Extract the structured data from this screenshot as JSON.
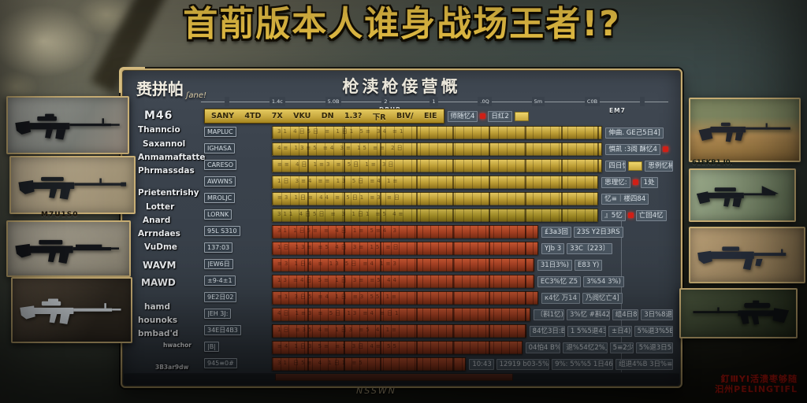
{
  "title": "首萷版本人谁身战场王者!?",
  "panel": {
    "header": "枪渎枪倿营慨",
    "corner_label": "赉拼帕",
    "corner_script": "ʃane!",
    "ruler_ticks": [
      "",
      "1.4c",
      "5.0B",
      "2",
      "1",
      ".0Q",
      "5m",
      "C0B",
      ""
    ],
    "sub_label_left": "DRUB",
    "sub_label_right": "EM7",
    "footer": "NSSWN"
  },
  "left_labels": [
    "M46",
    "Thanncio",
    "Saxannol",
    "Anmamaftatte",
    "Phrmassdas",
    "Prietentrishy",
    "Lotter",
    "Anard",
    "Arrndaes",
    "VuDme",
    "WAVM",
    "MAWD",
    "hamd",
    "hounoks",
    "bmbad'd",
    "hwachor",
    "3B3ar9dw"
  ],
  "table": {
    "header_cells": [
      "SANY",
      "4TD",
      "7X",
      "VKU",
      "DN",
      "1.3?",
      "下R",
      "BIV/",
      "EIE"
    ],
    "header_value": "师随忆4",
    "header_value2": "日红2",
    "rows": [
      {
        "tag": "MAPLUC",
        "color": "yellow",
        "len": 82,
        "bt": "31 4日5日 ≡ 1日1 5≡ 34 ≡1",
        "v1": "伸曲. GE己5日4]"
      },
      {
        "tag": "IGHASA",
        "color": "yellow",
        "len": 82,
        "bt": "4≡ 13≡5 ≡4 3≡ 15 ≡≡ 2日",
        "v1": "惧凯 :3阅 酥忆4"
      },
      {
        "tag": "CARESO",
        "color": "yellow",
        "len": 82,
        "bt": "≡≡ 4日 1≡3 ≡ 5日 1≡ 3日",
        "v1": "四日忆",
        "v2": "思例忆椒»"
      },
      {
        "tag": "AWWNS",
        "color": "yellow",
        "len": 81,
        "bt": "1日 3≡4 ≡≡ 13 5日 ≡4 1≡",
        "v1": "思理忆:",
        "v2": "1处"
      },
      {
        "tag": "MROLJC",
        "color": "yellow",
        "len": 81,
        "bt": "≡3 1日≡ 44 ≡ 5日1 ≡3 ≡日",
        "v1": "忆≡｜楼四84"
      },
      {
        "tag": "LORNK",
        "color": "olive",
        "len": 81,
        "bt": "311 4日5日 ≡ 3 1日1 ≡5 4≡",
        "v1": "』5忆",
        "v2": "亡回4忆"
      },
      {
        "tag": "95L S310",
        "color": "red",
        "len": 66,
        "bt": "31 1日5≡ ≡ 4日 1≡ 5≡4 3",
        "v1": "£3a3回",
        "v2": "23S Y2日3RS"
      },
      {
        "tag": "137:03",
        "color": "red",
        "len": 66,
        "bt": "1日 13≡ ≡5 4日 3≡ 15 ≡日",
        "v1": "YJb 3",
        "v2": "33C〔223〕"
      },
      {
        "tag": "|EW6日",
        "color": "red",
        "len": 65,
        "bt": "≡3 1日4 ≡ 13 5日 ≡4 1≡3",
        "v1": "31日3%)",
        "v2": "E83 Y)"
      },
      {
        "tag": "±9-4±1",
        "color": "red",
        "len": 65,
        "bt": "13 ≡4日 5≡ 1日 3≡ ≡5 44",
        "v1": "EC3%忆 Z5",
        "v2": "3%54 3%)"
      },
      {
        "tag": "9E2日02",
        "color": "red",
        "len": 66,
        "bt": "≡1 3日5 ≡4 1日 ≡3 55 1≡",
        "v1": "к4忆 万14",
        "v2": "乃阅忆亡4]"
      },
      {
        "tag": "|EH 3J:",
        "color": "red",
        "len": 64,
        "bt": "4日 1≡3 ≡ 5日 13 ≡4 ≡日1",
        "v1": "〔斟1忆)",
        "v2": "3%忆 #斟42",
        "v3": "组4日8",
        "v4": "3日%8退"
      },
      {
        "tag": "34E日4B3",
        "color": "red",
        "len": 63,
        "bt": "1日 ≡35 4≡ 1日3 ≡5 4 1≡",
        "v1": "84忆3日:B",
        "v2": "1 5%5退43",
        "v3": "±日4)",
        "v4": "5%退3%5B"
      },
      {
        "tag": "|B|",
        "color": "red",
        "len": 62,
        "bt": "≡4 1日3 5≡ ≡1 3日 4≡ 55",
        "v1": "04怕4 B%:",
        "v2": "退%54忆2%」",
        "v3": "5≡2少",
        "v4": "5%退3日5B"
      },
      {
        "tag": "945≡0#",
        "color": "red",
        "len": 48,
        "bt": "31 日5≡ 4 1日1 ≡5",
        "v1": "10:43",
        "v2": "12919 b03-5%",
        "v3": "9%: 5%%5 1日46",
        "v4": "组退4%B 3日%≡"
      }
    ]
  },
  "weapons": {
    "left_caption": "M7U1S0",
    "right_caption": "61EKB1 I0."
  },
  "watermark": {
    "line1": "釘ⅢYI活溃枣够随",
    "line2": "汩州PELINGTIFL"
  },
  "colors": {
    "gold_border": "#c7ad72",
    "title_gold": "#f8ce4a",
    "bar_yellow": "#c9a83b",
    "bar_olive": "#9c8824",
    "bar_red": "#b4452a",
    "accent_red": "#d01f16",
    "chip_yellow": "#e0c050",
    "panel_bg": "#3a424c"
  }
}
